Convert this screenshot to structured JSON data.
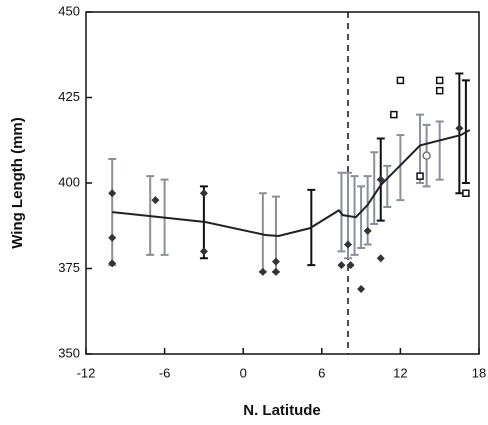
{
  "chart_data": {
    "type": "line",
    "x_label": "N. Latitude",
    "y_label": "Wing Length (mm)",
    "xlim": [
      -12,
      18
    ],
    "xticks": [
      -12,
      -6,
      0,
      6,
      12,
      18
    ],
    "ylim": [
      350,
      450
    ],
    "yticks": [
      350,
      375,
      400,
      425,
      450
    ],
    "vline": 8,
    "line": {
      "color": "#222222",
      "x": [
        -10,
        -2.9,
        1.7,
        2.7,
        5.1,
        7.3,
        7.6,
        8.6,
        9.5,
        10.5,
        11.8,
        13.5,
        16.6,
        17.3
      ],
      "values": [
        391.5,
        388.6,
        384.8,
        384.5,
        386.8,
        392,
        390.6,
        390,
        393.6,
        399.4,
        404.4,
        411,
        414,
        415.5
      ]
    },
    "error_bars": {
      "x": [
        -10,
        -7.1,
        -6,
        -3,
        1.5,
        2.5,
        5.2,
        7.5,
        8,
        8.5,
        9,
        9.5,
        10,
        10.5,
        11,
        12,
        13.5,
        14,
        15,
        16.5,
        17
      ],
      "values": [
        391.5,
        390.5,
        390,
        388.5,
        385.5,
        385,
        387,
        391.5,
        390.5,
        390.5,
        390,
        392,
        398.5,
        401,
        399,
        404.5,
        410,
        408,
        409.5,
        414.5,
        415
      ],
      "errors": [
        15.5,
        11.5,
        11,
        10.5,
        11.5,
        11,
        11,
        11.5,
        12.5,
        11.5,
        9,
        10,
        10.5,
        12,
        6,
        9.5,
        10,
        9,
        8.5,
        17.5,
        15
      ],
      "colors": [
        "#8a8f9a",
        "#8a8f9a",
        "#8a8f9a",
        "#111111",
        "#8a8f9a",
        "#8a8f9a",
        "#111111",
        "#8a8f9a",
        "#8a8f9a",
        "#8a8f9a",
        "#8a8f9a",
        "#8a8f9a",
        "#8a8f9a",
        "#111111",
        "#8a8f9a",
        "#8a8f9a",
        "#8a8f9a",
        "#8a8f9a",
        "#8a8f9a",
        "#111111",
        "#111111"
      ]
    },
    "filled_points": {
      "color": "#333333",
      "x": [
        -10,
        -10,
        -10,
        -6.7,
        -3,
        -3,
        1.5,
        2.5,
        2.5,
        7.5,
        8,
        8.2,
        9,
        10.5,
        9.5,
        10.5,
        16.5
      ],
      "values": [
        397,
        384,
        376.5,
        395,
        397,
        380,
        374,
        377,
        374,
        376,
        382,
        376,
        369,
        378,
        386,
        401,
        416
      ]
    },
    "open_points": {
      "color": "#111111",
      "x": [
        12,
        11.5,
        15,
        15,
        13.5,
        17
      ],
      "values": [
        430,
        420,
        430,
        427,
        402,
        397
      ]
    },
    "open_circles": {
      "color": "#777777",
      "x": [
        14
      ],
      "values": [
        408
      ]
    }
  }
}
